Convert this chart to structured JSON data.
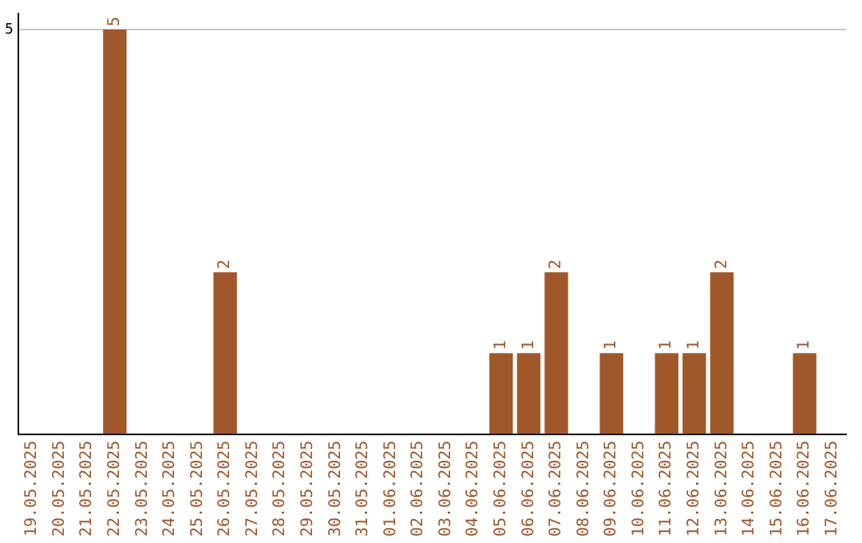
{
  "chart_data": {
    "type": "bar",
    "categories": [
      "19.05.2025",
      "20.05.2025",
      "21.05.2025",
      "22.05.2025",
      "23.05.2025",
      "24.05.2025",
      "25.05.2025",
      "26.05.2025",
      "27.05.2025",
      "28.05.2025",
      "29.05.2025",
      "30.05.2025",
      "31.05.2025",
      "01.06.2025",
      "02.06.2025",
      "03.06.2025",
      "04.06.2025",
      "05.06.2025",
      "06.06.2025",
      "07.06.2025",
      "08.06.2025",
      "09.06.2025",
      "10.06.2025",
      "11.06.2025",
      "12.06.2025",
      "13.06.2025",
      "14.06.2025",
      "15.06.2025",
      "16.06.2025",
      "17.06.2025"
    ],
    "values": [
      0,
      0,
      0,
      5,
      0,
      0,
      0,
      2,
      0,
      0,
      0,
      0,
      0,
      0,
      0,
      0,
      0,
      1,
      1,
      2,
      0,
      1,
      0,
      1,
      1,
      2,
      0,
      0,
      1,
      0
    ],
    "value_labels": [
      null,
      null,
      null,
      "5",
      null,
      null,
      null,
      "2",
      null,
      null,
      null,
      null,
      null,
      null,
      null,
      null,
      null,
      "1",
      "1",
      "2",
      null,
      "1",
      null,
      "1",
      "1",
      "2",
      null,
      null,
      "1",
      null
    ],
    "color": "#a0582a",
    "ylim": [
      0,
      5.2
    ],
    "yticks": [
      5
    ],
    "grid": "y",
    "legend": false
  }
}
